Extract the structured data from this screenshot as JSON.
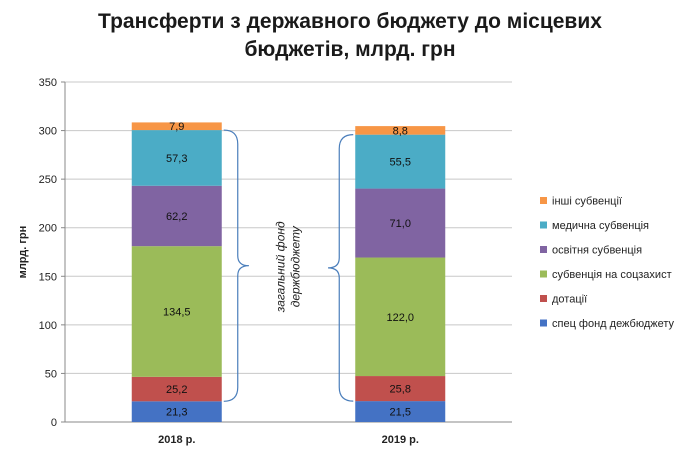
{
  "chart_data": {
    "type": "bar",
    "stacked": true,
    "title_lines": [
      "Трансферти з державного бюджету до місцевих",
      "бюджетів, млрд. грн"
    ],
    "ylabel": "млрд. грн",
    "xlabel": "",
    "categories": [
      "2018 р.",
      "2019 р."
    ],
    "ylim": [
      0,
      350
    ],
    "yticks": [
      0,
      50,
      100,
      150,
      200,
      250,
      300,
      350
    ],
    "grid": true,
    "legend_position": "right",
    "annotation": {
      "lines": [
        "загальний фонд",
        "держбюджету"
      ],
      "spans_series": [
        "дотації",
        "субвенція на соцзахист",
        "освітня субвенція",
        "медична субвенція"
      ]
    },
    "series": [
      {
        "name": "спец фонд дежбюджету",
        "color": "#4472C4",
        "values": [
          21.3,
          21.5
        ],
        "labels": [
          "21,3",
          "21,5"
        ]
      },
      {
        "name": "дотації",
        "color": "#C0504D",
        "values": [
          25.2,
          25.8
        ],
        "labels": [
          "25,2",
          "25,8"
        ]
      },
      {
        "name": "субвенція на соцзахист",
        "color": "#9BBB59",
        "values": [
          134.5,
          122.0
        ],
        "labels": [
          "134,5",
          "122,0"
        ]
      },
      {
        "name": "освітня субвенція",
        "color": "#8064A2",
        "values": [
          62.2,
          71.0
        ],
        "labels": [
          "62,2",
          "71,0"
        ]
      },
      {
        "name": "медична субвенція",
        "color": "#4BACC6",
        "values": [
          57.3,
          55.5
        ],
        "labels": [
          "57,3",
          "55,5"
        ]
      },
      {
        "name": "інші субвенції",
        "color": "#F79646",
        "values": [
          7.9,
          8.8
        ],
        "labels": [
          "7,9",
          "8,8"
        ]
      }
    ]
  }
}
